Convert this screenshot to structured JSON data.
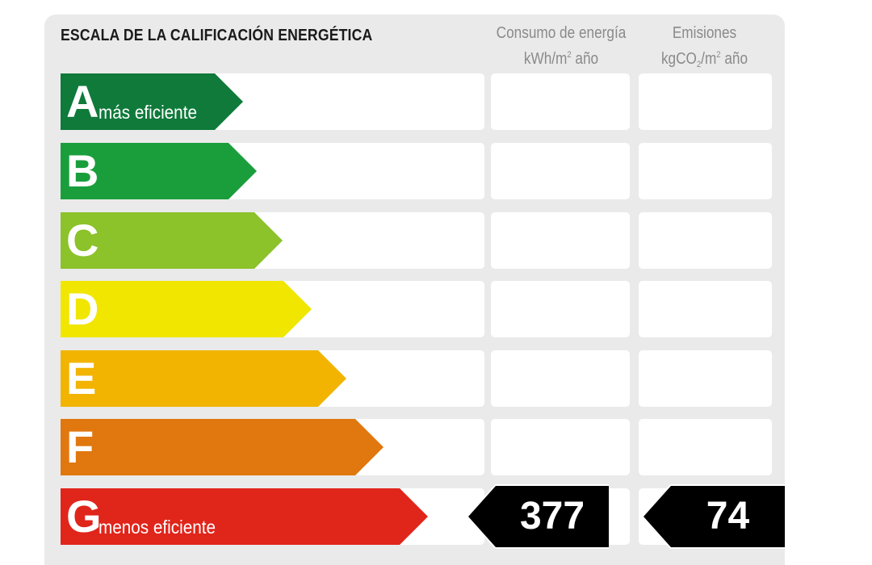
{
  "title": "ESCALA DE LA CALIFICACIÓN ENERGÉTICA",
  "columns": {
    "energy": {
      "line1": "Consumo de energía",
      "line2_pre": "kWh/m",
      "line2_sup": "2",
      "line2_post": " año"
    },
    "emissions": {
      "line1": "Emisiones",
      "line2_pre": "kgCO",
      "line2_sub": "2",
      "line2_mid": "/m",
      "line2_sup": "2",
      "line2_post": " año"
    }
  },
  "ratings": [
    {
      "letter": "A",
      "label": "más eficiente",
      "color": "#0f7a3a"
    },
    {
      "letter": "B",
      "label": "",
      "color": "#1a9e3c"
    },
    {
      "letter": "C",
      "label": "",
      "color": "#8cc22a"
    },
    {
      "letter": "D",
      "label": "",
      "color": "#f0e600"
    },
    {
      "letter": "E",
      "label": "",
      "color": "#f2b400"
    },
    {
      "letter": "F",
      "label": "",
      "color": "#e0780f"
    },
    {
      "letter": "G",
      "label": "menos eficiente",
      "color": "#e0251b"
    }
  ],
  "result": {
    "rating": "G",
    "energy_value": "377",
    "emissions_value": "74"
  }
}
